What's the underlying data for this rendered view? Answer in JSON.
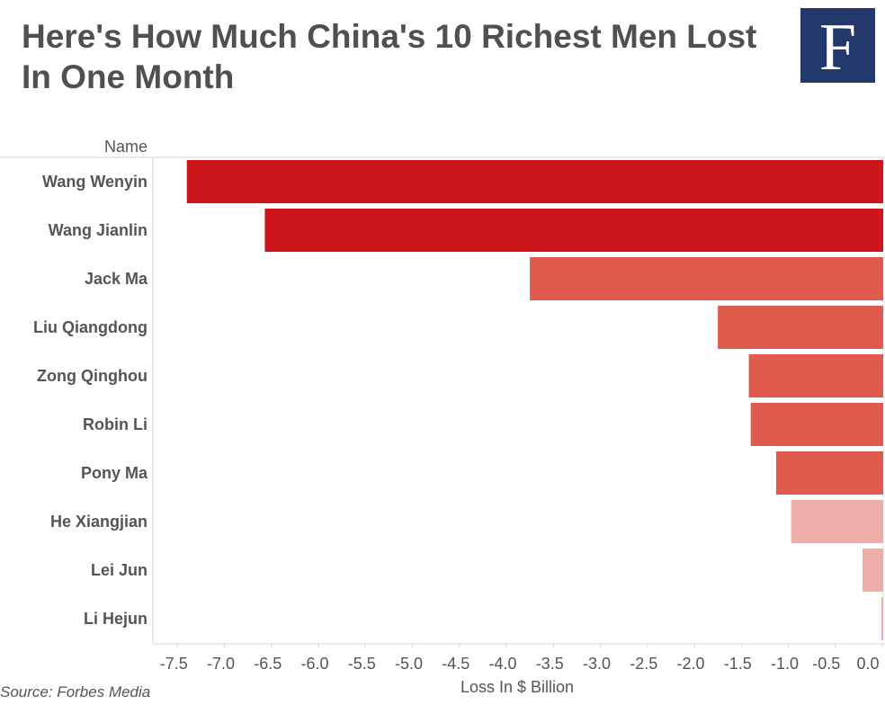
{
  "logo": {
    "letter": "F",
    "background": "#23386b"
  },
  "source": "Source: Forbes Media",
  "chart_data": {
    "type": "bar",
    "orientation": "horizontal",
    "title": "Here's How Much China's 10 Richest Men Lost In One Month",
    "row_header": "Name",
    "xlabel": "Loss In $ Billion",
    "xlim": [
      -7.7,
      0.0
    ],
    "xticks": [
      "-7.5",
      "-7.0",
      "-6.5",
      "-6.0",
      "-5.5",
      "-5.0",
      "-4.5",
      "-4.0",
      "-3.5",
      "-3.0",
      "-2.5",
      "-2.0",
      "-1.5",
      "-1.0",
      "-0.5",
      "0.0"
    ],
    "categories": [
      "Wang Wenyin",
      "Wang Jianlin",
      "Jack Ma",
      "Liu Qiangdong",
      "Zong Qinghou",
      "Robin Li",
      "Pony Ma",
      "He Xiangjian",
      "Lei Jun",
      "Li Hejun"
    ],
    "values": [
      -7.4,
      -6.57,
      -3.75,
      -1.75,
      -1.42,
      -1.4,
      -1.13,
      -0.97,
      -0.21,
      -0.01
    ],
    "colors": [
      "#cc161b",
      "#cc161b",
      "#e05a4e",
      "#e05a4e",
      "#e05a4e",
      "#e05a4e",
      "#e05a4e",
      "#edaeaa",
      "#edaeaa",
      "#edaeaa"
    ],
    "grid": false
  }
}
